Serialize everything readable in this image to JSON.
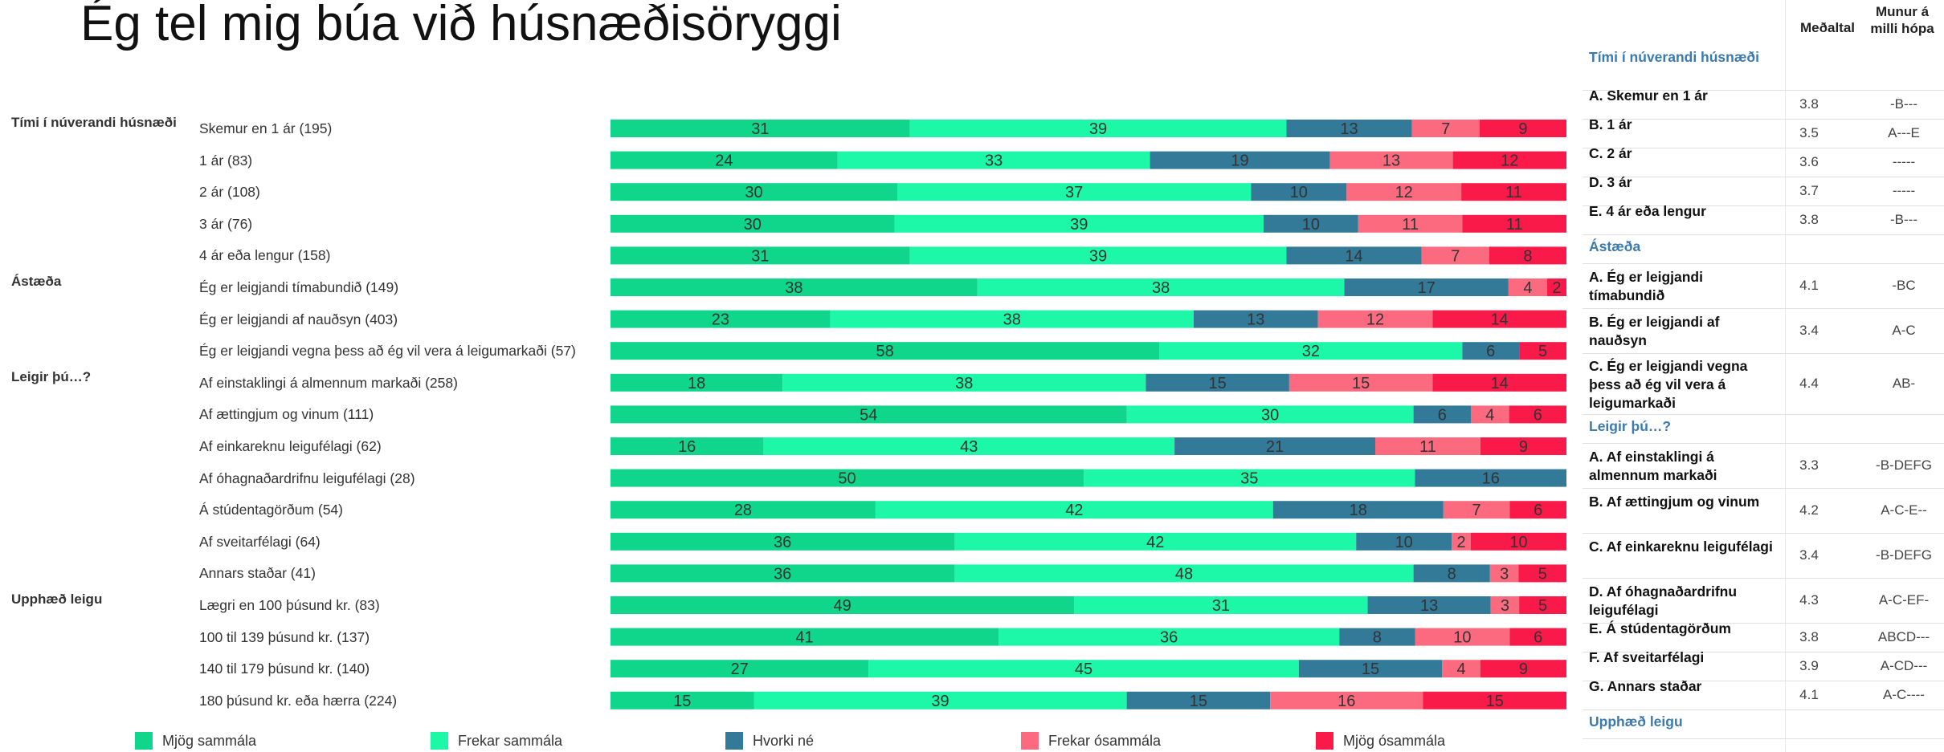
{
  "title": "Ég tel mig búa við húsnæðisöryggi",
  "colors": [
    "#0fd68a",
    "#1df7a8",
    "#337a99",
    "#fc6a80",
    "#fa1a4a"
  ],
  "chart_data": {
    "type": "bar",
    "orientation": "horizontal",
    "stacked": true,
    "percent": true,
    "series": [
      {
        "name": "Mjög sammála",
        "values": [
          31,
          24,
          30,
          30,
          31,
          38,
          23,
          58,
          18,
          54,
          16,
          50,
          28,
          36,
          36,
          49,
          41,
          27,
          15
        ]
      },
      {
        "name": "Frekar sammála",
        "values": [
          39,
          33,
          37,
          39,
          39,
          38,
          38,
          32,
          38,
          30,
          43,
          35,
          42,
          42,
          48,
          31,
          36,
          45,
          39
        ]
      },
      {
        "name": "Hvorki né",
        "values": [
          13,
          19,
          10,
          10,
          14,
          17,
          13,
          6,
          15,
          6,
          21,
          16,
          18,
          10,
          8,
          13,
          8,
          15,
          15
        ]
      },
      {
        "name": "Frekar ósammála",
        "values": [
          7,
          13,
          12,
          11,
          7,
          4,
          12,
          0,
          15,
          4,
          11,
          0,
          7,
          2,
          3,
          3,
          10,
          4,
          16
        ]
      },
      {
        "name": "Mjög ósammála",
        "values": [
          9,
          12,
          11,
          11,
          8,
          2,
          14,
          5,
          14,
          6,
          9,
          0,
          6,
          10,
          5,
          5,
          6,
          9,
          15
        ]
      }
    ],
    "categories": [
      "Skemur en 1 ár  (195)",
      "1 ár (83)",
      "2 ár  (108)",
      "3 ár (76)",
      "4 ár eða lengur (158)",
      "Ég er leigjandi tímabundið (149)",
      "Ég er leigjandi af nauðsyn  (403)",
      "Ég er leigjandi vegna þess að ég vil vera á leigumarkaði  (57)",
      "Af einstaklingi á almennum markaði (258)",
      "Af ættingjum og vinum (111)",
      "Af einkareknu leigufélagi (62)",
      "Af óhagnaðardrifnu leigufélagi (28)",
      "Á stúdentagörðum (54)",
      "Af sveitarfélagi (64)",
      "Annars staðar (41)",
      "Lægri en 100 þúsund kr. (83)",
      "100 til 139 þúsund kr. (137)",
      "140 til 179 þúsund kr. (140)",
      "180 þúsund kr. eða hærra (224)"
    ],
    "groups": [
      {
        "label": "Tími í núverandi húsnæði",
        "start": 0
      },
      {
        "label": "Ástæða",
        "start": 5
      },
      {
        "label": "Leigir þú…?",
        "start": 8
      },
      {
        "label": "Upphæð leigu",
        "start": 15
      }
    ]
  },
  "table": {
    "header_mean": "Meðaltal",
    "header_diff": "Munur á\nmilli hópa",
    "rows": [
      {
        "type": "section",
        "label": "Tími í núverandi húsnæði"
      },
      {
        "label": "A. Skemur en 1 ár",
        "mean": "3.8",
        "diff": "-B---"
      },
      {
        "label": "B. 1 ár",
        "mean": "3.5",
        "diff": "A---E"
      },
      {
        "label": "C. 2 ár",
        "mean": "3.6",
        "diff": "-----"
      },
      {
        "label": "D. 3 ár",
        "mean": "3.7",
        "diff": "-----"
      },
      {
        "label": "E. 4 ár eða lengur",
        "mean": "3.8",
        "diff": "-B---"
      },
      {
        "type": "section",
        "label": "Ástæða"
      },
      {
        "label": "A. Ég er leigjandi tímabundið",
        "mean": "4.1",
        "diff": "-BC"
      },
      {
        "label": "B. Ég er leigjandi af nauðsyn",
        "mean": "3.4",
        "diff": "A-C"
      },
      {
        "label": "C. Ég er leigjandi vegna þess að ég vil vera á leigumarkaði",
        "mean": "4.4",
        "diff": "AB-"
      },
      {
        "type": "section",
        "label": "Leigir þú…?"
      },
      {
        "label": "A. Af einstaklingi á almennum markaði",
        "mean": "3.3",
        "diff": "-B-DEFG"
      },
      {
        "label": "B. Af ættingjum og vinum",
        "mean": "4.2",
        "diff": "A-C-E--"
      },
      {
        "label": "C. Af einkareknu leigufélagi",
        "mean": "3.4",
        "diff": "-B-DEFG"
      },
      {
        "label": "D. Af óhagnaðardrifnu leigufélagi",
        "mean": "4.3",
        "diff": "A-C-EF-"
      },
      {
        "label": "E. Á stúdentagörðum",
        "mean": "3.8",
        "diff": "ABCD---"
      },
      {
        "label": "F. Af sveitarfélagi",
        "mean": "3.9",
        "diff": "A-CD---"
      },
      {
        "label": "G. Annars staðar",
        "mean": "4.1",
        "diff": "A-C----"
      },
      {
        "type": "section",
        "label": "Upphæð leigu"
      }
    ]
  }
}
